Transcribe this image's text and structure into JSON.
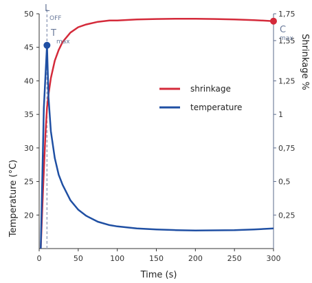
{
  "chart_data": {
    "type": "line",
    "xlabel": "Time (s)",
    "ylabel": "Temperature (°C)",
    "y2label": "Shrinkage %",
    "xlim": [
      0,
      300
    ],
    "ylim": [
      15,
      50
    ],
    "y2lim": [
      0,
      1.75
    ],
    "x_ticks": [
      "0",
      "50",
      "100",
      "150",
      "200",
      "250",
      "300"
    ],
    "y_ticks": [
      "20",
      "25",
      "30",
      "35",
      "40",
      "45",
      "50"
    ],
    "y2_ticks": [
      "0,25",
      "0,5",
      "0,75",
      "1",
      "1,25",
      "1,55",
      "1,75"
    ],
    "legend_position": "center-right",
    "series": [
      {
        "name": "shrinkage",
        "axis": "right",
        "color": "#d42a3a",
        "x": [
          2,
          5,
          8,
          10,
          12,
          15,
          20,
          25,
          30,
          40,
          50,
          60,
          75,
          90,
          100,
          125,
          150,
          175,
          200,
          225,
          250,
          275,
          300
        ],
        "y": [
          0,
          0.45,
          0.85,
          1.05,
          1.15,
          1.27,
          1.4,
          1.48,
          1.54,
          1.61,
          1.65,
          1.67,
          1.69,
          1.7,
          1.7,
          1.708,
          1.711,
          1.713,
          1.713,
          1.711,
          1.708,
          1.703,
          1.695
        ]
      },
      {
        "name": "temperature",
        "axis": "left",
        "color": "#1f4fa3",
        "x": [
          2,
          6,
          10,
          12,
          15,
          20,
          25,
          30,
          40,
          50,
          60,
          75,
          90,
          100,
          125,
          150,
          175,
          200,
          225,
          250,
          275,
          300
        ],
        "y": [
          15,
          36,
          45.3,
          37.5,
          32.5,
          28.5,
          26.0,
          24.5,
          22.2,
          20.8,
          19.9,
          19.0,
          18.5,
          18.3,
          18.0,
          17.85,
          17.75,
          17.7,
          17.72,
          17.75,
          17.85,
          18.0
        ]
      }
    ],
    "annotations": {
      "loff": {
        "main": "L",
        "sub": "OFF",
        "x": 10
      },
      "tmax": {
        "main": "T",
        "sub": "max",
        "x": 10,
        "y": 45.3
      },
      "cmax": {
        "main": "C",
        "sub": "max",
        "x": 300,
        "y2": 1.695
      }
    }
  }
}
